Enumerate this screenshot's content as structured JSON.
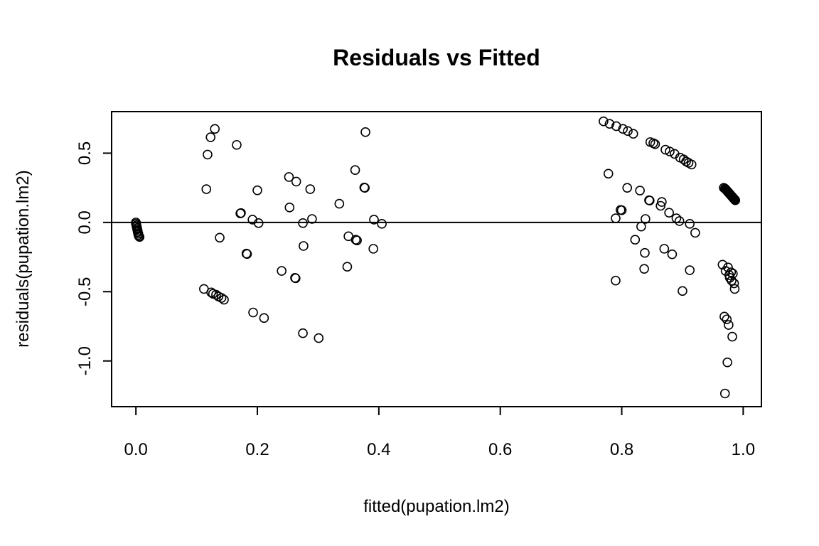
{
  "chart_data": {
    "type": "scatter",
    "title": "Residuals vs Fitted",
    "xlabel": "fitted(pupation.lm2)",
    "ylabel": "residuals(pupation.lm2)",
    "xlim": [
      -0.04,
      1.03
    ],
    "ylim": [
      -1.33,
      0.8
    ],
    "xticks": [
      0.0,
      0.2,
      0.4,
      0.6,
      0.8,
      1.0
    ],
    "xtick_labels": [
      "0.0",
      "0.2",
      "0.4",
      "0.6",
      "0.8",
      "1.0"
    ],
    "yticks": [
      -1.0,
      -0.5,
      0.0,
      0.5
    ],
    "ytick_labels": [
      "-1.0",
      "-0.5",
      "0.0",
      "0.5"
    ],
    "reference_line_y": 0,
    "grid": false,
    "marker": "open-circle",
    "series": [
      {
        "points": [
          [
            0.0,
            0.0
          ],
          [
            0.0,
            -0.01
          ],
          [
            0.001,
            -0.02
          ],
          [
            0.001,
            -0.03
          ],
          [
            0.002,
            -0.04
          ],
          [
            0.002,
            -0.05
          ],
          [
            0.003,
            -0.06
          ],
          [
            0.003,
            -0.07
          ],
          [
            0.004,
            -0.08
          ],
          [
            0.004,
            -0.09
          ],
          [
            0.005,
            -0.1
          ],
          [
            0.006,
            -0.105
          ],
          [
            0.112,
            -0.48
          ],
          [
            0.118,
            0.49
          ],
          [
            0.116,
            0.24
          ],
          [
            0.123,
            0.615
          ],
          [
            0.124,
            -0.505
          ],
          [
            0.127,
            -0.515
          ],
          [
            0.13,
            0.675
          ],
          [
            0.132,
            -0.522
          ],
          [
            0.136,
            -0.535
          ],
          [
            0.138,
            -0.11
          ],
          [
            0.141,
            -0.545
          ],
          [
            0.145,
            -0.558
          ],
          [
            0.166,
            0.56
          ],
          [
            0.172,
            0.065
          ],
          [
            0.173,
            0.068
          ],
          [
            0.182,
            -0.225
          ],
          [
            0.183,
            -0.228
          ],
          [
            0.192,
            0.02
          ],
          [
            0.193,
            -0.65
          ],
          [
            0.2,
            0.232
          ],
          [
            0.202,
            -0.005
          ],
          [
            0.211,
            -0.69
          ],
          [
            0.24,
            -0.35
          ],
          [
            0.252,
            0.328
          ],
          [
            0.253,
            0.108
          ],
          [
            0.262,
            -0.4
          ],
          [
            0.263,
            -0.403
          ],
          [
            0.264,
            0.295
          ],
          [
            0.275,
            -0.005
          ],
          [
            0.276,
            -0.17
          ],
          [
            0.275,
            -0.8
          ],
          [
            0.287,
            0.24
          ],
          [
            0.29,
            0.025
          ],
          [
            0.301,
            -0.835
          ],
          [
            0.335,
            0.135
          ],
          [
            0.348,
            -0.32
          ],
          [
            0.35,
            -0.1
          ],
          [
            0.361,
            0.378
          ],
          [
            0.362,
            -0.125
          ],
          [
            0.364,
            -0.13
          ],
          [
            0.376,
            0.252
          ],
          [
            0.377,
            0.25
          ],
          [
            0.378,
            0.652
          ],
          [
            0.391,
            -0.19
          ],
          [
            0.392,
            0.02
          ],
          [
            0.405,
            -0.01
          ],
          [
            0.77,
            0.73
          ],
          [
            0.778,
            0.352
          ],
          [
            0.78,
            0.712
          ],
          [
            0.79,
            0.03
          ],
          [
            0.79,
            -0.42
          ],
          [
            0.791,
            0.695
          ],
          [
            0.798,
            0.09
          ],
          [
            0.8,
            0.088
          ],
          [
            0.802,
            0.675
          ],
          [
            0.809,
            0.25
          ],
          [
            0.81,
            0.66
          ],
          [
            0.819,
            0.64
          ],
          [
            0.822,
            -0.125
          ],
          [
            0.83,
            0.23
          ],
          [
            0.832,
            -0.03
          ],
          [
            0.837,
            -0.335
          ],
          [
            0.838,
            -0.22
          ],
          [
            0.839,
            0.025
          ],
          [
            0.845,
            0.16
          ],
          [
            0.846,
            0.158
          ],
          [
            0.847,
            0.58
          ],
          [
            0.852,
            0.572
          ],
          [
            0.855,
            0.565
          ],
          [
            0.864,
            0.12
          ],
          [
            0.866,
            0.148
          ],
          [
            0.87,
            -0.19
          ],
          [
            0.872,
            0.525
          ],
          [
            0.878,
            0.07
          ],
          [
            0.879,
            0.512
          ],
          [
            0.883,
            -0.23
          ],
          [
            0.887,
            0.495
          ],
          [
            0.89,
            0.03
          ],
          [
            0.895,
            0.01
          ],
          [
            0.896,
            0.468
          ],
          [
            0.9,
            -0.495
          ],
          [
            0.902,
            0.455
          ],
          [
            0.906,
            0.44
          ],
          [
            0.91,
            0.43
          ],
          [
            0.912,
            -0.345
          ],
          [
            0.912,
            -0.01
          ],
          [
            0.915,
            0.418
          ],
          [
            0.921,
            -0.075
          ],
          [
            0.966,
            -0.305
          ],
          [
            0.968,
            0.25
          ],
          [
            0.969,
            -0.68
          ],
          [
            0.97,
            -1.235
          ],
          [
            0.97,
            0.245
          ],
          [
            0.971,
            -0.35
          ],
          [
            0.971,
            0.24
          ],
          [
            0.972,
            0.235
          ],
          [
            0.973,
            -0.7
          ],
          [
            0.973,
            0.23
          ],
          [
            0.974,
            -1.01
          ],
          [
            0.974,
            0.225
          ],
          [
            0.975,
            -0.325
          ],
          [
            0.975,
            0.22
          ],
          [
            0.976,
            -0.74
          ],
          [
            0.976,
            0.215
          ],
          [
            0.977,
            -0.38
          ],
          [
            0.977,
            0.21
          ],
          [
            0.978,
            -0.4
          ],
          [
            0.978,
            0.205
          ],
          [
            0.979,
            0.2
          ],
          [
            0.98,
            -0.36
          ],
          [
            0.98,
            0.195
          ],
          [
            0.981,
            -0.42
          ],
          [
            0.981,
            0.19
          ],
          [
            0.982,
            -0.825
          ],
          [
            0.982,
            0.185
          ],
          [
            0.983,
            -0.37
          ],
          [
            0.983,
            0.18
          ],
          [
            0.984,
            0.175
          ],
          [
            0.985,
            -0.44
          ],
          [
            0.985,
            0.17
          ],
          [
            0.986,
            -0.48
          ],
          [
            0.986,
            0.165
          ],
          [
            0.987,
            0.16
          ]
        ]
      }
    ]
  }
}
